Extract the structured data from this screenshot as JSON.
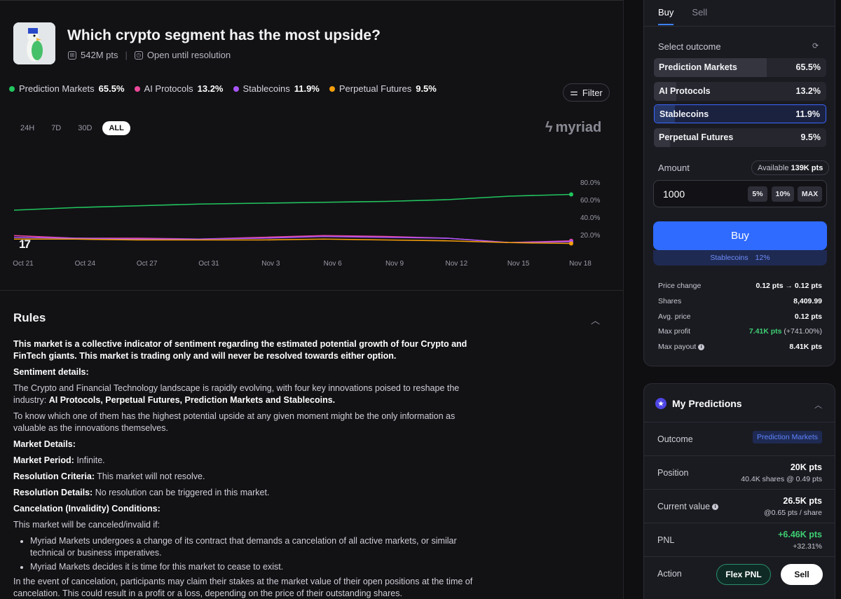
{
  "market": {
    "title": "Which crypto segment has the most upside?",
    "volume": "542M pts",
    "status": "Open until resolution"
  },
  "legend": [
    {
      "name": "Prediction Markets",
      "value": "65.5%",
      "color": "#22c55e"
    },
    {
      "name": "AI Protocols",
      "value": "13.2%",
      "color": "#ec4899"
    },
    {
      "name": "Stablecoins",
      "value": "11.9%",
      "color": "#a855f7"
    },
    {
      "name": "Perpetual Futures",
      "value": "9.5%",
      "color": "#f59e0b"
    }
  ],
  "filter_label": "Filter",
  "ranges": [
    "24H",
    "7D",
    "30D",
    "ALL"
  ],
  "active_range": "ALL",
  "brand": "myriad",
  "chart_data": {
    "type": "line",
    "x": [
      "Oct 21",
      "Oct 24",
      "Oct 27",
      "Oct 31",
      "Nov 3",
      "Nov 6",
      "Nov 9",
      "Nov 12",
      "Nov 15",
      "Nov 18"
    ],
    "ytick_labels": [
      "80.0%",
      "60.0%",
      "40.0%",
      "20.0%"
    ],
    "ylim": [
      0,
      100
    ],
    "series": [
      {
        "name": "Prediction Markets",
        "color": "#22c55e",
        "values": [
          48,
          51,
          53,
          55,
          56,
          57,
          58,
          60,
          64,
          66
        ]
      },
      {
        "name": "AI Protocols",
        "color": "#ec4899",
        "values": [
          19,
          16,
          16,
          15,
          17,
          19,
          18,
          16,
          11,
          13
        ]
      },
      {
        "name": "Stablecoins",
        "color": "#a855f7",
        "values": [
          17,
          16,
          15,
          15,
          16,
          18,
          17,
          16,
          11,
          12
        ]
      },
      {
        "name": "Perpetual Futures",
        "color": "#f59e0b",
        "values": [
          15,
          15,
          14,
          14,
          14,
          15,
          14,
          13,
          11,
          10
        ]
      }
    ]
  },
  "rules": {
    "heading": "Rules",
    "intro": "This market is a collective indicator of sentiment regarding the estimated potential growth of four Crypto and FinTech giants. This market is trading only and will never be resolved towards either option.",
    "sentiment_h": "Sentiment details:",
    "sentiment_p1a": "The Crypto and Financial Technology landscape is rapidly evolving, with four key innovations poised to reshape the industry: ",
    "sentiment_p1b": "AI Protocols, Perpetual Futures, Prediction Markets and Stablecoins.",
    "sentiment_p2": "To know which one of them has the highest potential upside at any given moment might be the only information as valuable as the innovations themselves.",
    "market_h": "Market Details:",
    "period_k": "Market Period:",
    "period_v": " Infinite.",
    "res_k": "Resolution Criteria:",
    "res_v": " This market will not resolve.",
    "resd_k": "Resolution Details:",
    "resd_v": " No resolution can be triggered in this market.",
    "cancel_h": "Cancelation (Invalidity) Conditions:",
    "cancel_p": "This market will be canceled/invalid if:",
    "bullet1": "Myriad Markets undergoes a change of its contract that demands a cancelation of all active markets, or similar technical or business imperatives.",
    "bullet2": "Myriad Markets decides it is time for this market to cease to exist.",
    "final": "In the event of cancelation, participants may claim their stakes at the market value of their open positions at the time of cancelation. This could result in a profit or a loss, depending on the price of their outstanding shares."
  },
  "trade": {
    "tabs": [
      "Buy",
      "Sell"
    ],
    "select_label": "Select outcome",
    "outcomes": [
      {
        "name": "Prediction Markets",
        "pct": "65.5%",
        "share": 0.655
      },
      {
        "name": "AI Protocols",
        "pct": "13.2%",
        "share": 0.132
      },
      {
        "name": "Stablecoins",
        "pct": "11.9%",
        "share": 0.119
      },
      {
        "name": "Perpetual Futures",
        "pct": "9.5%",
        "share": 0.095
      }
    ],
    "selected_outcome": "Stablecoins",
    "amount_label": "Amount",
    "available_label": "Available",
    "available_value": "139K pts",
    "amount_value": "1000",
    "quick": [
      "5%",
      "10%",
      "MAX"
    ],
    "buy_label": "Buy",
    "buy_outcome": "Stablecoins",
    "buy_pct": "12%",
    "details": {
      "price_change_label": "Price change",
      "price_from": "0.12 pts",
      "price_to": "0.12 pts",
      "shares_label": "Shares",
      "shares_value": "8,409.99",
      "avg_label": "Avg. price",
      "avg_value": "0.12 pts",
      "maxprofit_label": "Max profit",
      "maxprofit_value": "7.41K pts",
      "maxprofit_pct": "(+741.00%)",
      "maxpayout_label": "Max payout",
      "maxpayout_value": "8.41K pts"
    }
  },
  "predictions": {
    "title": "My Predictions",
    "outcome_label": "Outcome",
    "outcome_value": "Prediction Markets",
    "position_label": "Position",
    "position_value": "20K pts",
    "position_sub": "40.4K shares @ 0.49 pts",
    "current_label": "Current value",
    "current_value": "26.5K pts",
    "current_sub": "@0.65 pts / share",
    "pnl_label": "PNL",
    "pnl_value": "+6.46K pts",
    "pnl_pct": "+32.31%",
    "action_label": "Action",
    "flex_label": "Flex PNL",
    "sell_label": "Sell"
  }
}
